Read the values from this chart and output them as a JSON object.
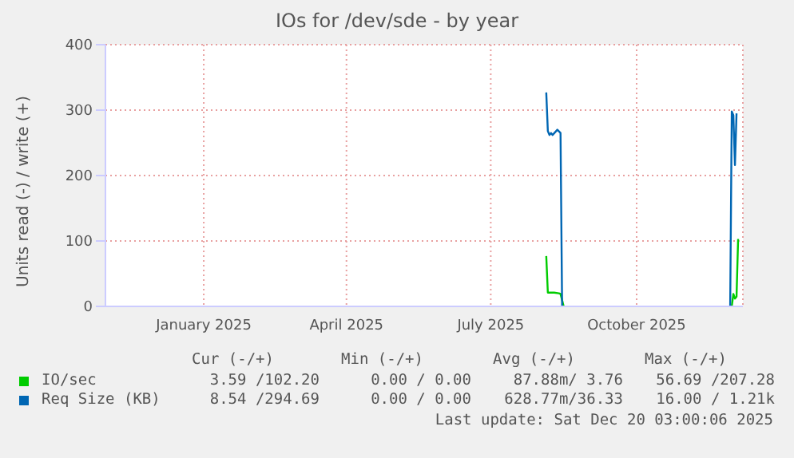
{
  "chart_data": {
    "type": "line",
    "title": "IOs for /dev/sde - by year",
    "ylabel": "Units read (-) / write (+)",
    "xlim": [
      "2024-11-15",
      "2025-12-22"
    ],
    "xticks": [
      {
        "value": "2025-01-16",
        "label": "January 2025"
      },
      {
        "value": "2025-04-16",
        "label": "April 2025"
      },
      {
        "value": "2025-07-16",
        "label": "July 2025"
      },
      {
        "value": "2025-10-16",
        "label": "October 2025"
      }
    ],
    "ylim": [
      0,
      400
    ],
    "yticks": [
      0,
      100,
      200,
      300,
      400
    ],
    "grid": true,
    "legend": "bottom",
    "series": [
      {
        "name": "IO/sec",
        "color": "#00cc00",
        "x": [
          "2025-08-20",
          "2025-08-21",
          "2025-08-25",
          "2025-08-28",
          "2025-08-29",
          "2025-08-31",
          "2025-10-15",
          "2025-12-15",
          "2025-12-16",
          "2025-12-17",
          "2025-12-18",
          "2025-12-19"
        ],
        "values": [
          77,
          21,
          21,
          20,
          19,
          0,
          null,
          0,
          19,
          12,
          15,
          103
        ]
      },
      {
        "name": "Req Size (KB)",
        "color": "#0066b3",
        "x": [
          "2025-08-20",
          "2025-08-21",
          "2025-08-22",
          "2025-08-23",
          "2025-08-24",
          "2025-08-27",
          "2025-08-29",
          "2025-08-30",
          "2025-10-15",
          "2025-12-14",
          "2025-12-15",
          "2025-12-16",
          "2025-12-17",
          "2025-12-18"
        ],
        "values": [
          327,
          268,
          262,
          265,
          262,
          270,
          265,
          0,
          null,
          0,
          298,
          292,
          216,
          295
        ]
      }
    ],
    "annotations": [
      "Cur (-/+)",
      "Min (-/+)",
      "Avg (-/+)",
      "Max (-/+)",
      "3.59 /102.20",
      "0.00 / 0.00",
      "87.88m/ 3.76",
      "56.69 /207.28",
      "8.54 /294.69",
      "0.00 / 0.00",
      "628.77m/36.33",
      "16.00 / 1.21k",
      "Last update: Sat Dec 20 03:00:06 2025"
    ]
  }
}
